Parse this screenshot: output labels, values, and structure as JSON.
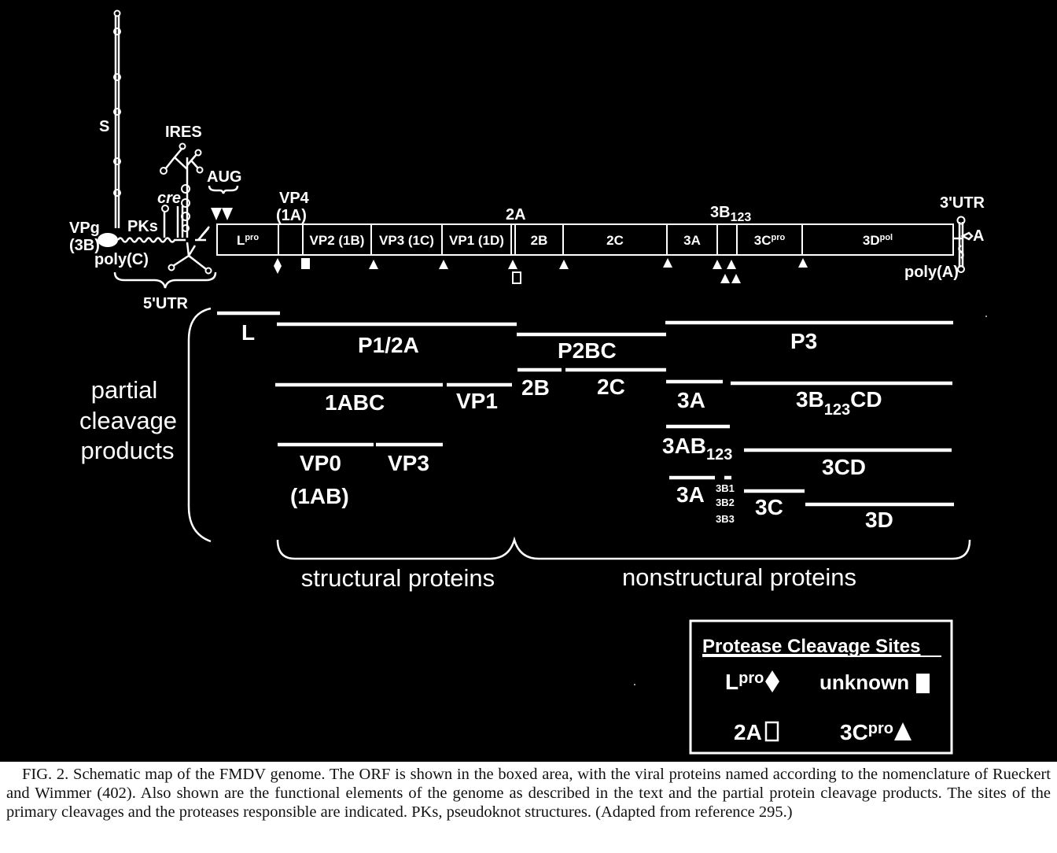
{
  "utr5": {
    "s_label": "S",
    "ires_label": "IRES",
    "cre_label": "cre",
    "pks_label": "PKs",
    "vpg_label": "VPg",
    "vpg_sub": "(3B)",
    "polyc_label": "poly(C)",
    "utr_label": "5'UTR",
    "aug_label": "AUG"
  },
  "utr3": {
    "utr_label": "3'UTR",
    "a_label": "A",
    "polya_label": "poly(A)"
  },
  "orf": {
    "above_labels": {
      "vp4": "VP4",
      "vp4_sub": "(1A)",
      "a2": "2A",
      "b3": "3B",
      "b3_sub": "123"
    },
    "segments": [
      {
        "key": "L",
        "label": "L",
        "sup": "pro"
      },
      {
        "key": "VP4",
        "label": "",
        "sup": ""
      },
      {
        "key": "VP2",
        "label": "VP2 (1B)",
        "sup": ""
      },
      {
        "key": "VP3",
        "label": "VP3 (1C)",
        "sup": ""
      },
      {
        "key": "VP1",
        "label": "VP1 (1D)",
        "sup": ""
      },
      {
        "key": "2A",
        "label": "",
        "sup": ""
      },
      {
        "key": "2B",
        "label": "2B",
        "sup": ""
      },
      {
        "key": "2C",
        "label": "2C",
        "sup": ""
      },
      {
        "key": "3A",
        "label": "3A",
        "sup": ""
      },
      {
        "key": "3B",
        "label": "",
        "sup": ""
      },
      {
        "key": "3C",
        "label": "3C",
        "sup": "pro"
      },
      {
        "key": "3D",
        "label": "3D",
        "sup": "pol"
      }
    ]
  },
  "products": {
    "side_label": [
      "partial",
      "cleavage",
      "products"
    ],
    "L": "L",
    "P1_2A": "P1/2A",
    "P2BC": "P2BC",
    "P3": "P3",
    "1ABC": "1ABC",
    "VP1": "VP1",
    "2B": "2B",
    "2C": "2C",
    "3A": "3A",
    "3B123CD": "3B",
    "3B123CD_sub": "123",
    "3B123CD_tail": "CD",
    "VP0": "VP0",
    "VP0_sub": "(1AB)",
    "VP3": "VP3",
    "3AB123": "3AB",
    "3AB123_sub": "123",
    "3CD": "3CD",
    "3A_b": "3A",
    "3B1": "3B1",
    "3B2": "3B2",
    "3B3": "3B3",
    "3C": "3C",
    "3D": "3D"
  },
  "groups": {
    "structural": "structural proteins",
    "nonstructural": "nonstructural proteins"
  },
  "legend": {
    "title": "Protease Cleavage Sites",
    "lpro": "L",
    "lpro_sup": "pro",
    "unknown": "unknown",
    "a2": "2A",
    "c3pro": "3C",
    "c3pro_sup": "pro"
  },
  "caption": {
    "text": "FIG. 2. Schematic map of the FMDV genome. The ORF is shown in the boxed area, with the viral proteins named according to the nomenclature of Rueckert and Wimmer (402). Also shown are the functional elements of the genome as described in the text and the partial protein cleavage products. The sites of the primary cleavages and the proteases responsible are indicated. PKs, pseudoknot structures. (Adapted from reference 295.)"
  },
  "colors": {
    "background": "#000000",
    "foreground": "#ffffff",
    "caption_text": "#111111",
    "page": "#ffffff"
  }
}
